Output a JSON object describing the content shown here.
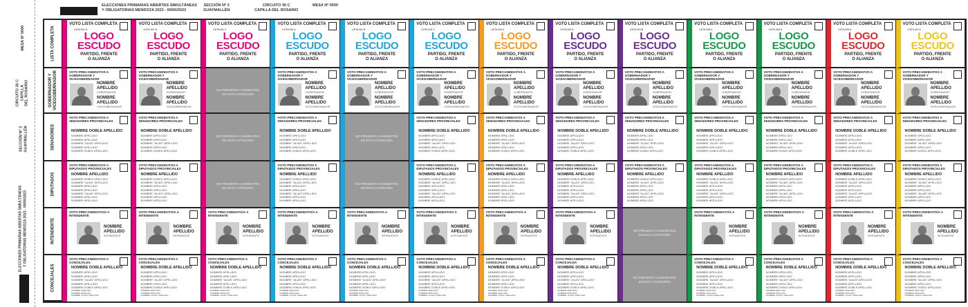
{
  "header": {
    "election": "ELECCIONES PRIMARIAS ABIERTAS SIMULTÁNEAS",
    "election2": "Y OBLIGATORIAS MENDOZA 2023 - 00/00/2023",
    "seccion": "SECCIÓN Nº 3",
    "seccion2": "GUAYMALLÉN",
    "circuito": "CIRCUITO 30 C",
    "circuito2": "CAPILLA DEL ROSARIO",
    "mesa": "MESA Nº 0000"
  },
  "side": {
    "mesa": "MESA Nº 0000",
    "circuito": "CIRCUITO 30 C",
    "circuito2": "CAPILLA",
    "circuito3": "DEL ROSARIO",
    "seccion": "SECCIÓN Nº 3",
    "seccion2": "GUAYMALLÉN",
    "election": "ELECCIONES PRIMARIAS ABIERTAS SIMULTÁNEAS",
    "election2": "Y OBLIGATORIAS MENDOZA 2023 - 00/00/2023"
  },
  "categories": [
    "LISTA COMPLETA",
    "GOBERNADOR Y VICEGOBERNADOR",
    "SENADORES",
    "DIPUTADOS",
    "INTENDENTE",
    "CONCEJALES"
  ],
  "cell": {
    "full": {
      "title": "VOTO LISTA COMPLETA",
      "logo1": "LOGO",
      "logo2": "ESCUDO",
      "party1": "PARTIDO, FRENTE",
      "party2": "O ALIANZA"
    },
    "gov": {
      "title": "VOTO PRECANDIDATOS A GOBERNADOR Y VICEGOBERNADOR",
      "name1": "NOMBRE",
      "name2": "APELLIDO",
      "role1": "GOBERNADOR",
      "role2": "VICEGOBERNADOR"
    },
    "sen": {
      "title": "VOTO PRECANDIDATOS A SENADORES PROVINCIALES",
      "lead": "NOMBRE DOBLE APELLIDO",
      "lines": [
        "NOMBRE APELLIDO",
        "NOMBRE APELLIDO",
        "NOMBRE \"ALIAS\" APELLIDO",
        "NOMBRE APELLIDO",
        "NOMBRE DOBLE APELLIDO"
      ]
    },
    "dip": {
      "title": "VOTO PRECANDIDATOS A DIPUTADOS PROVINCIALES",
      "lead": "NOMBRE APELLIDO",
      "lines": [
        "NOMBRE DOBLE APELLIDO",
        "NOMBRE \"ALIAS\" APELLIDO",
        "NOMBRE APELLIDO",
        "NOMBRE APELLIDO",
        "NOMBRE \"ALIAS\" APELLIDO",
        "NOMBRE APELLIDO",
        "NOMBRE APELLIDO"
      ]
    },
    "int": {
      "title": "VOTO PRECANDIDATO/A A INTENDENTE",
      "name1": "NOMBRE",
      "name2": "APELLIDO",
      "role": "INTENDENTE"
    },
    "con": {
      "title": "VOTO PRECANDIDATOS A CONCEJALES",
      "lead": "NOMBRE DOBLE APELLIDO",
      "lines": [
        "NOMBRE APELLIDO",
        "NOMBRE APELLIDO",
        "NOMBRE \"ALIAS\" APELLIDO",
        "NOMBRE APELLIDO",
        "NOMBRE DOBLE APELLIDO"
      ],
      "small": [
        "NOMBRE APELLIDO",
        "NOMBRE APELLIDO",
        "NOMBRE \"ALIAS\" APELLIDO"
      ]
    },
    "none": "NO PRESENTA CANDIDATOS EN ESTA CATEGORÍA"
  },
  "lists": [
    {
      "list": "LISTA 001 A",
      "color": "#e6007e",
      "empty": []
    },
    {
      "list": "LISTA 001 B",
      "color": "#e6007e",
      "empty": []
    },
    {
      "list": "LISTA 001 C",
      "color": "#e6007e",
      "empty": [
        "gov",
        "sen",
        "dip"
      ]
    },
    {
      "list": "LISTA 002 A",
      "color": "#1ba6dd",
      "empty": []
    },
    {
      "list": "LISTA 002 B",
      "color": "#1ba6dd",
      "empty": [
        "sen",
        "dip"
      ]
    },
    {
      "list": "LISTA 002 C",
      "color": "#1ba6dd",
      "empty": []
    },
    {
      "list": "LISTA 003 A",
      "color": "#f39a1f",
      "empty": []
    },
    {
      "list": "LISTA 004 A",
      "color": "#6a2c91",
      "empty": []
    },
    {
      "list": "LISTA 004 B",
      "color": "#6a2c91",
      "empty": [
        "int",
        "con"
      ]
    },
    {
      "list": "LISTA 005 A",
      "color": "#129a48",
      "empty": []
    },
    {
      "list": "LISTA 005 B",
      "color": "#129a48",
      "empty": []
    },
    {
      "list": "LISTA 006 A",
      "color": "#e3262b",
      "empty": []
    },
    {
      "list": "LISTA 007 A",
      "color": "#f2c315",
      "empty": []
    }
  ]
}
